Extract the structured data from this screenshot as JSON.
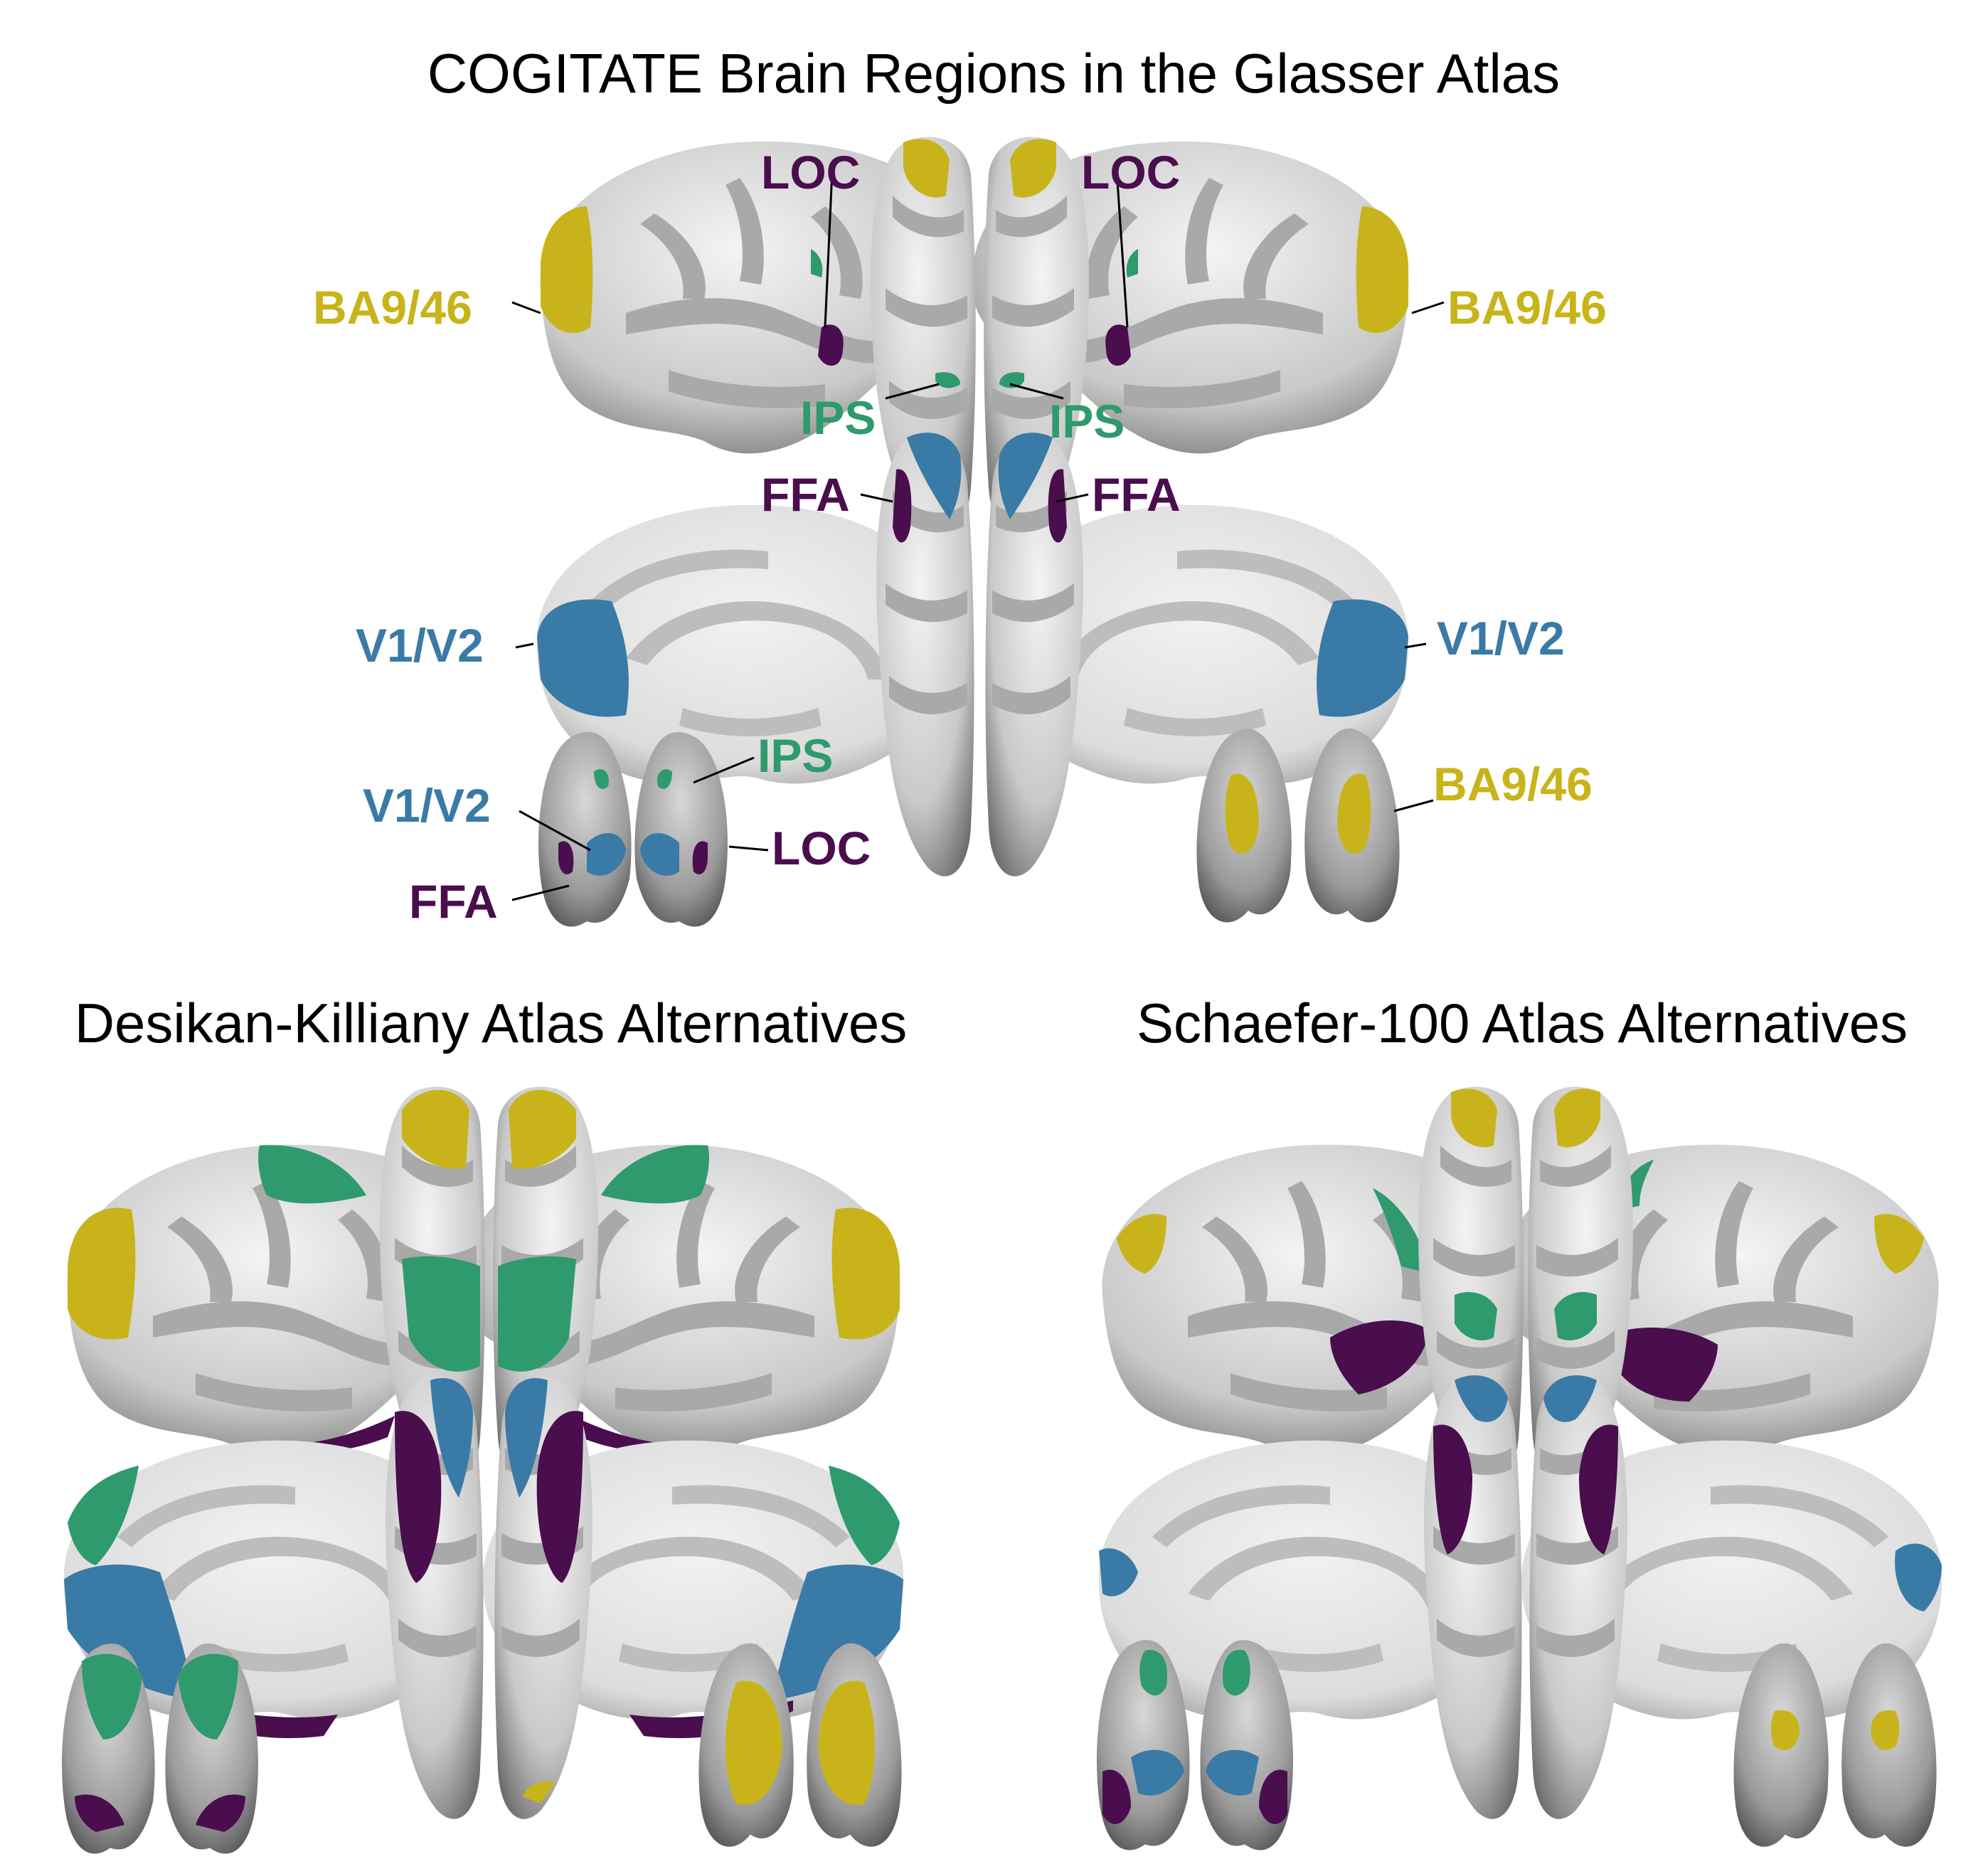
{
  "colors": {
    "prefrontal": "#c8b41a",
    "parietal": "#2e9a6e",
    "visual": "#3a7aa6",
    "ventral": "#4a0d4e",
    "cortex_light": "#e4e4e4",
    "cortex_dark": "#a9a9a9"
  },
  "titles": {
    "main": "COGITATE  Brain Regions in the Glasser Atlas",
    "dk": "Desikan-Killiany Atlas Alternatives",
    "schaefer": "Schaefer-100 Atlas Alternatives"
  },
  "labels": {
    "loc_left": "LOC",
    "loc_right": "LOC",
    "ba946_left": "BA9/46",
    "ba946_right": "BA9/46",
    "ips_left": "IPS",
    "ips_right": "IPS",
    "ffa_left": "FFA",
    "ffa_right": "FFA",
    "v1v2_left": "V1/V2",
    "v1v2_right": "V1/V2",
    "ips_post": "IPS",
    "v1v2_post": "V1/V2",
    "loc_post": "LOC",
    "ffa_post": "FFA",
    "ba946_front": "BA9/46"
  }
}
